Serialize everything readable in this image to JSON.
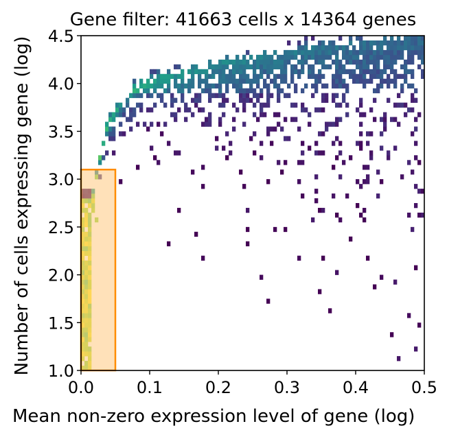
{
  "chart_data": {
    "type": "heatmap",
    "title": "Gene filter: 41663 cells x 14364 genes",
    "xlabel": "Mean non-zero expression level of gene (log)",
    "ylabel": "Number of cells expressing gene (log)",
    "xlim": [
      0.0,
      0.5
    ],
    "ylim": [
      1.0,
      4.5
    ],
    "xticks": [
      {
        "value": 0.0,
        "label": "0.0"
      },
      {
        "value": 0.1,
        "label": "0.1"
      },
      {
        "value": 0.2,
        "label": "0.2"
      },
      {
        "value": 0.3,
        "label": "0.3"
      },
      {
        "value": 0.4,
        "label": "0.4"
      },
      {
        "value": 0.5,
        "label": "0.5"
      }
    ],
    "yticks": [
      {
        "value": 1.0,
        "label": "1.0"
      },
      {
        "value": 1.5,
        "label": "1.5"
      },
      {
        "value": 2.0,
        "label": "2.0"
      },
      {
        "value": 2.5,
        "label": "2.5"
      },
      {
        "value": 3.0,
        "label": "3.0"
      },
      {
        "value": 3.5,
        "label": "3.5"
      },
      {
        "value": 4.0,
        "label": "4.0"
      },
      {
        "value": 4.5,
        "label": "4.5"
      }
    ],
    "colormap": "viridis",
    "density_ridge": [
      [
        0.02,
        2.9
      ],
      [
        0.03,
        3.35
      ],
      [
        0.04,
        3.6
      ],
      [
        0.06,
        3.82
      ],
      [
        0.08,
        3.95
      ],
      [
        0.1,
        4.02
      ],
      [
        0.15,
        4.12
      ],
      [
        0.2,
        4.2
      ],
      [
        0.25,
        4.27
      ],
      [
        0.3,
        4.33
      ],
      [
        0.35,
        4.38
      ],
      [
        0.4,
        4.42
      ],
      [
        0.45,
        4.46
      ],
      [
        0.5,
        4.5
      ]
    ],
    "filter_region": {
      "x": [
        0.0,
        0.05
      ],
      "y": [
        1.0,
        3.1
      ],
      "fill": "#ffc880",
      "edge": "#ff8c00"
    },
    "colors": {
      "axis": "#000000",
      "background": "#ffffff"
    }
  }
}
